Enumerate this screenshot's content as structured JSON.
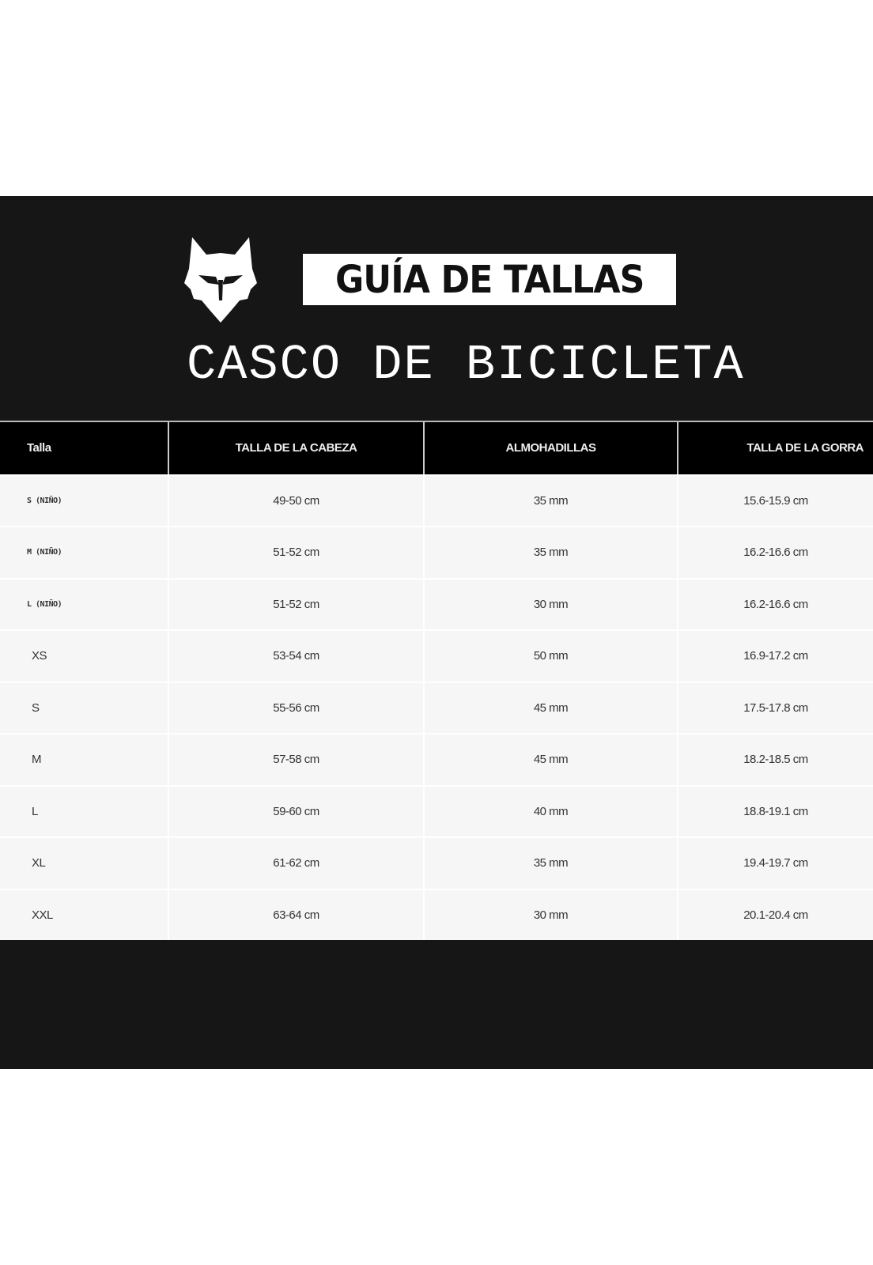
{
  "brand_logo": "Fox head logo",
  "badge_title": "GUÍA DE TALLAS",
  "subtitle": "CASCO DE BICICLETA",
  "table": {
    "headers": [
      "Talla",
      "TALLA DE LA CABEZA",
      "ALMOHADILLAS",
      "TALLA DE LA GORRA"
    ],
    "rows": [
      [
        "S (NIÑO)",
        "49-50 cm",
        "35 mm",
        "15.6-15.9 cm"
      ],
      [
        "M (NIÑO)",
        "51-52 cm",
        "35 mm",
        "16.2-16.6 cm"
      ],
      [
        "L (NIÑO)",
        "51-52 cm",
        "30 mm",
        "16.2-16.6 cm"
      ],
      [
        "XS",
        "53-54 cm",
        "50 mm",
        "16.9-17.2 cm"
      ],
      [
        "S",
        "55-56 cm",
        "45 mm",
        "17.5-17.8 cm"
      ],
      [
        "M",
        "57-58 cm",
        "45 mm",
        "18.2-18.5 cm"
      ],
      [
        "L",
        "59-60 cm",
        "40 mm",
        "18.8-19.1 cm"
      ],
      [
        "XL",
        "61-62 cm",
        "35 mm",
        "19.4-19.7 cm"
      ],
      [
        "XXL",
        "63-64 cm",
        "30 mm",
        "20.1-20.4 cm"
      ]
    ]
  }
}
